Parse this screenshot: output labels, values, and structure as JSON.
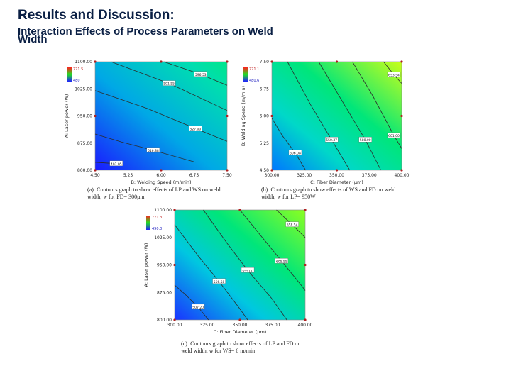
{
  "header": {
    "title": "Results and Discussion:",
    "subtitle": "Interaction Effects of Process Parameters on Weld Width"
  },
  "colors": {
    "low": "#1a33ff",
    "mid": "#00e68a",
    "high": "#c8ff1a",
    "contour": "#2b2b2b"
  },
  "chart_data": [
    {
      "type": "heatmap",
      "id": "a",
      "xlabel": "B: Welding Speed (m/min)",
      "ylabel": "A: Laser power (W)",
      "xlim": [
        4.5,
        7.0
      ],
      "ylim": [
        800,
        1100
      ],
      "xticks": [
        "4.50",
        "5.25",
        "6.00",
        "6.75",
        "7.50"
      ],
      "yticks": [
        "800.00",
        "875.00",
        "950.00",
        "1025.00",
        "1100.00"
      ],
      "legend": {
        "max": "771.5",
        "min": "480"
      },
      "contours": [
        {
          "label": "402.05",
          "points": [
            [
              4.5,
              822
            ],
            [
              4.9,
              818
            ]
          ]
        },
        {
          "label": "516.88",
          "points": [
            [
              4.5,
              900
            ],
            [
              5.0,
              878
            ],
            [
              5.6,
              855
            ],
            [
              6.4,
              822
            ]
          ]
        },
        {
          "label": "527.00",
          "points": [
            [
              4.5,
              1020
            ],
            [
              5.5,
              970
            ],
            [
              6.4,
              915
            ],
            [
              7.0,
              880
            ]
          ]
        },
        {
          "label": "591.55",
          "points": [
            [
              4.8,
              1100
            ],
            [
              5.9,
              1040
            ],
            [
              7.0,
              965
            ]
          ]
        },
        {
          "label": "596.53",
          "points": [
            [
              5.8,
              1100
            ],
            [
              6.5,
              1065
            ],
            [
              7.0,
              1035
            ]
          ]
        }
      ],
      "caption": [
        "(a): Contours graph to show effects of LP and WS on weld",
        "width, w for FD= 300μm"
      ]
    },
    {
      "type": "heatmap",
      "id": "b",
      "xlabel": "C: Fiber Diameter (μm)",
      "ylabel": "B: Welding Speed (m/min)",
      "xlim": [
        300,
        400
      ],
      "ylim": [
        4.5,
        7.0
      ],
      "xticks": [
        "300.00",
        "325.00",
        "350.00",
        "375.00",
        "400.00"
      ],
      "yticks": [
        "4.50",
        "5.25",
        "6.00",
        "6.75",
        "7.50"
      ],
      "legend": {
        "max": "771.1",
        "min": "480.6"
      },
      "contours": [
        {
          "label": "506.08",
          "points": [
            [
              300,
              5.7
            ],
            [
              308,
              5.3
            ],
            [
              318,
              4.9
            ],
            [
              326,
              4.5
            ]
          ]
        },
        {
          "label": "550.37",
          "points": [
            [
              312,
              7.0
            ],
            [
              330,
              6.0
            ],
            [
              346,
              5.2
            ],
            [
              360,
              4.5
            ]
          ]
        },
        {
          "label": "580.00",
          "points": [
            [
              336,
              7.0
            ],
            [
              356,
              6.0
            ],
            [
              372,
              5.2
            ],
            [
              384,
              4.5
            ]
          ]
        },
        {
          "label": "601.00",
          "points": [
            [
              362,
              7.0
            ],
            [
              378,
              6.2
            ],
            [
              394,
              5.3
            ],
            [
              400,
              5.0
            ]
          ]
        },
        {
          "label": "653.54",
          "points": [
            [
              386,
              7.0
            ],
            [
              394,
              6.7
            ],
            [
              400,
              6.5
            ]
          ]
        }
      ],
      "caption": [
        "(b): Contours graph to show effects of WS and FD on weld",
        "width, w for LP= 950W"
      ]
    },
    {
      "type": "heatmap",
      "id": "c",
      "xlabel": "C: Fiber Diameter (μm)",
      "ylabel": "A: Laser power (W)",
      "xlim": [
        300,
        400
      ],
      "ylim": [
        800,
        1100
      ],
      "xticks": [
        "300.00",
        "325.00",
        "350.00",
        "375.00",
        "400.00"
      ],
      "yticks": [
        "800.00",
        "875.00",
        "950.00",
        "1025.00",
        "1100.00"
      ],
      "legend": {
        "max": "771.3",
        "min": "490.0"
      },
      "contours": [
        {
          "label": "507.20",
          "points": [
            [
              300,
              895
            ],
            [
              308,
              870
            ],
            [
              318,
              835
            ],
            [
              326,
              800
            ]
          ]
        },
        {
          "label": "556.58",
          "points": [
            [
              300,
              1060
            ],
            [
              318,
              975
            ],
            [
              334,
              905
            ],
            [
              350,
              830
            ],
            [
              356,
              800
            ]
          ]
        },
        {
          "label": "555.00",
          "points": [
            [
              322,
              1100
            ],
            [
              340,
              1010
            ],
            [
              356,
              935
            ],
            [
              374,
              860
            ],
            [
              386,
              800
            ]
          ]
        },
        {
          "label": "605.55",
          "points": [
            [
              350,
              1100
            ],
            [
              366,
              1030
            ],
            [
              382,
              960
            ],
            [
              398,
              890
            ],
            [
              400,
              880
            ]
          ]
        },
        {
          "label": "658.54",
          "points": [
            [
              378,
              1100
            ],
            [
              390,
              1060
            ],
            [
              400,
              1025
            ]
          ]
        }
      ],
      "caption": [
        "(c): Contours graph to show effects of LP and FD or",
        "weld width, w for WS= 6 m/min"
      ]
    }
  ]
}
